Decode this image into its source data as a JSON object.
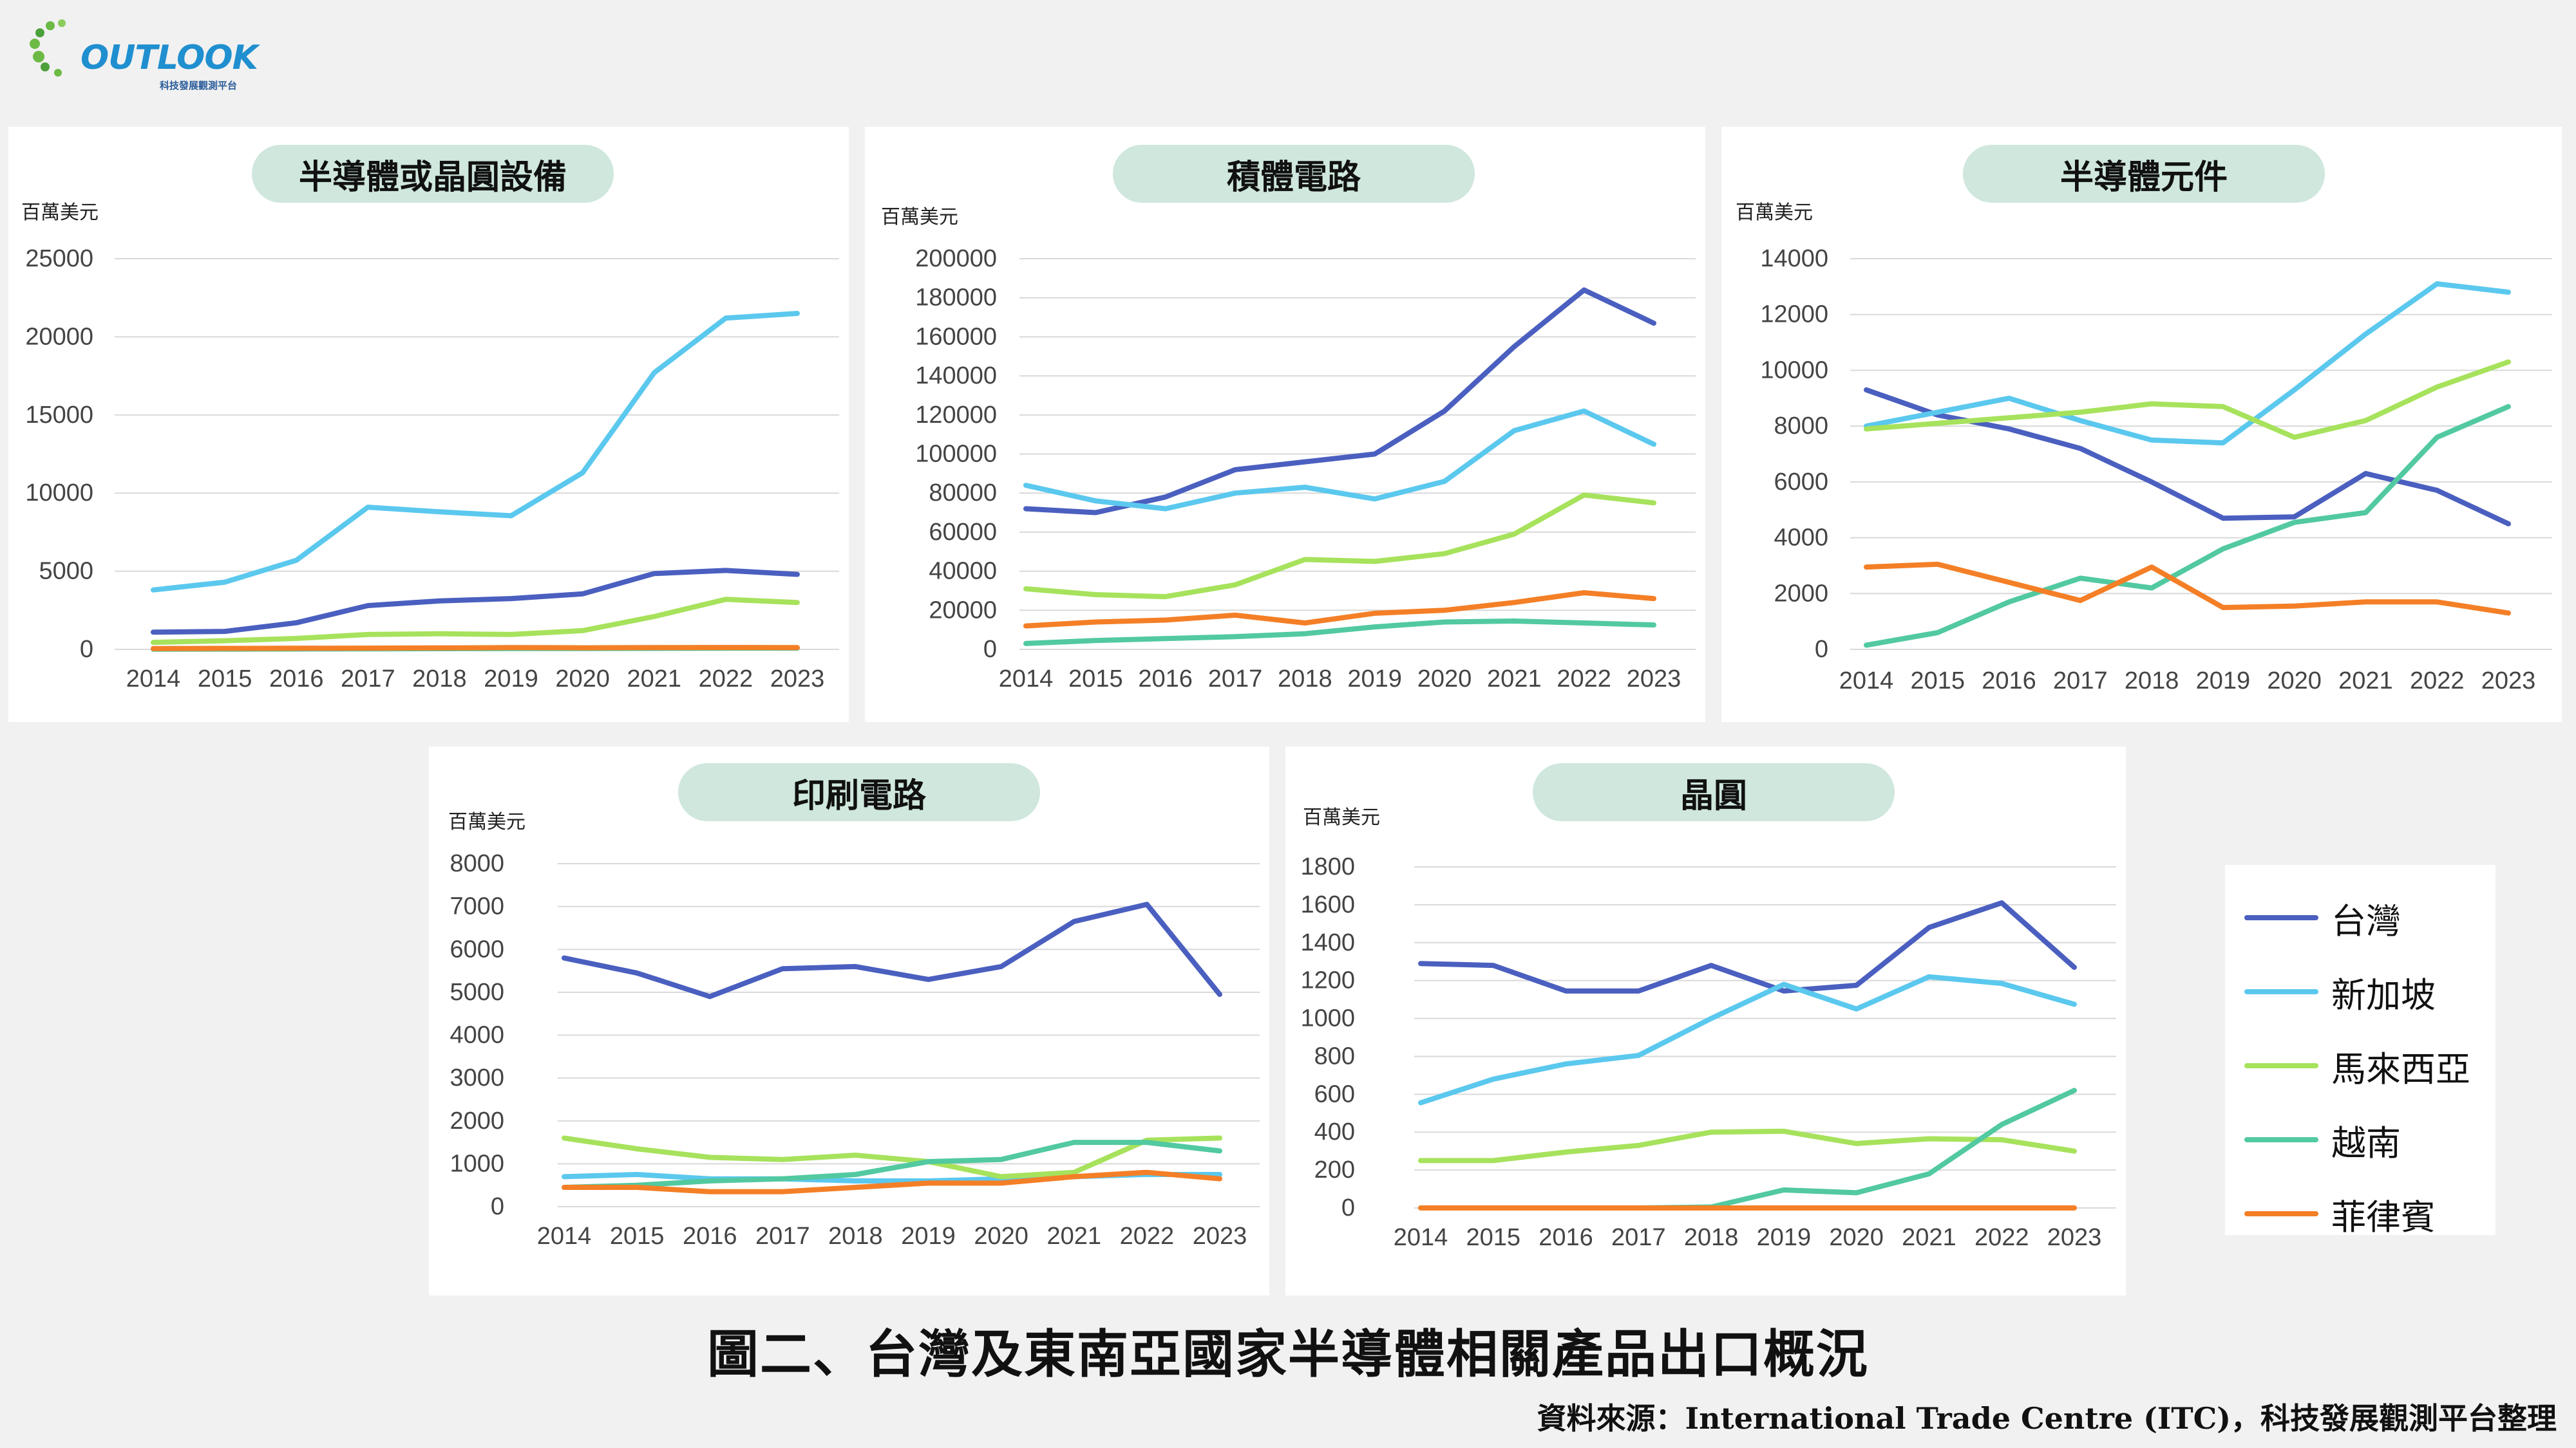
{
  "logo": {
    "text": "OUTLOOK",
    "subtitle": "科技發展觀測平台"
  },
  "figure_title": "圖二、台灣及東南亞國家半導體相關產品出口概況",
  "source": "資料來源：International Trade Centre (ITC)，科技發展觀測平台整理",
  "legend": [
    {
      "name": "台灣",
      "color": "#4a5fbf"
    },
    {
      "name": "新加坡",
      "color": "#5bc8ee"
    },
    {
      "name": "馬來西亞",
      "color": "#a7e25c"
    },
    {
      "name": "越南",
      "color": "#52c9a0"
    },
    {
      "name": "菲律賓",
      "color": "#f47f26"
    }
  ],
  "chart_data": [
    {
      "type": "line",
      "title": "半導體或晶圓設備",
      "ylabel": "百萬美元",
      "ylim": [
        0,
        25000
      ],
      "yticks": [
        0,
        5000,
        10000,
        15000,
        20000,
        25000
      ],
      "x": [
        "2014",
        "2015",
        "2016",
        "2017",
        "2018",
        "2019",
        "2020",
        "2021",
        "2022",
        "2023"
      ],
      "series": [
        {
          "name": "台灣",
          "values": [
            1100,
            1150,
            1700,
            2800,
            3100,
            3250,
            3550,
            4850,
            5050,
            4800
          ]
        },
        {
          "name": "新加坡",
          "values": [
            3800,
            4300,
            5700,
            9100,
            8800,
            8550,
            11300,
            17700,
            21200,
            21500
          ]
        },
        {
          "name": "馬來西亞",
          "values": [
            450,
            550,
            700,
            950,
            1000,
            950,
            1200,
            2100,
            3200,
            3000
          ]
        },
        {
          "name": "越南",
          "values": [
            10,
            15,
            20,
            30,
            40,
            50,
            50,
            60,
            70,
            80
          ]
        },
        {
          "name": "菲律賓",
          "values": [
            50,
            60,
            70,
            80,
            90,
            110,
            100,
            110,
            120,
            110
          ]
        }
      ]
    },
    {
      "type": "line",
      "title": "積體電路",
      "ylabel": "百萬美元",
      "ylim": [
        0,
        200000
      ],
      "yticks": [
        0,
        20000,
        40000,
        60000,
        80000,
        100000,
        120000,
        140000,
        160000,
        180000,
        200000
      ],
      "x": [
        "2014",
        "2015",
        "2016",
        "2017",
        "2018",
        "2019",
        "2020",
        "2021",
        "2022",
        "2023"
      ],
      "series": [
        {
          "name": "台灣",
          "values": [
            72000,
            70000,
            78000,
            92000,
            96000,
            100000,
            122000,
            155000,
            184000,
            167000
          ]
        },
        {
          "name": "新加坡",
          "values": [
            84000,
            76000,
            72000,
            80000,
            83000,
            77000,
            86000,
            112000,
            122000,
            105000
          ]
        },
        {
          "name": "馬來西亞",
          "values": [
            31000,
            28000,
            27000,
            33000,
            46000,
            45000,
            49000,
            59000,
            79000,
            75000
          ]
        },
        {
          "name": "越南",
          "values": [
            3000,
            4500,
            5500,
            6500,
            8000,
            11500,
            14000,
            14500,
            13500,
            12500
          ]
        },
        {
          "name": "菲律賓",
          "values": [
            12000,
            14000,
            15000,
            17500,
            13500,
            18500,
            20000,
            24000,
            29000,
            26000
          ]
        }
      ]
    },
    {
      "type": "line",
      "title": "半導體元件",
      "ylabel": "百萬美元",
      "ylim": [
        0,
        14000
      ],
      "yticks": [
        0,
        2000,
        4000,
        6000,
        8000,
        10000,
        12000,
        14000
      ],
      "x": [
        "2014",
        "2015",
        "2016",
        "2017",
        "2018",
        "2019",
        "2020",
        "2021",
        "2022",
        "2023"
      ],
      "series": [
        {
          "name": "台灣",
          "values": [
            9300,
            8400,
            7900,
            7200,
            6000,
            4700,
            4750,
            6300,
            5700,
            4500
          ]
        },
        {
          "name": "新加坡",
          "values": [
            8000,
            8500,
            9000,
            8200,
            7500,
            7400,
            9300,
            11300,
            13100,
            12800
          ]
        },
        {
          "name": "馬來西亞",
          "values": [
            7900,
            8100,
            8300,
            8500,
            8800,
            8700,
            7600,
            8200,
            9400,
            10300
          ]
        },
        {
          "name": "越南",
          "values": [
            150,
            600,
            1700,
            2550,
            2200,
            3600,
            4550,
            4900,
            7600,
            8700
          ]
        },
        {
          "name": "菲律賓",
          "values": [
            2950,
            3050,
            2400,
            1750,
            2950,
            1500,
            1550,
            1700,
            1700,
            1300
          ]
        }
      ]
    },
    {
      "type": "line",
      "title": "印刷電路",
      "ylabel": "百萬美元",
      "ylim": [
        0,
        8000
      ],
      "yticks": [
        0,
        1000,
        2000,
        3000,
        4000,
        5000,
        6000,
        7000,
        8000
      ],
      "x": [
        "2014",
        "2015",
        "2016",
        "2017",
        "2018",
        "2019",
        "2020",
        "2021",
        "2022",
        "2023"
      ],
      "series": [
        {
          "name": "台灣",
          "values": [
            5800,
            5450,
            4900,
            5550,
            5600,
            5300,
            5600,
            6650,
            7050,
            4950
          ]
        },
        {
          "name": "新加坡",
          "values": [
            700,
            750,
            650,
            650,
            600,
            600,
            650,
            700,
            750,
            750
          ]
        },
        {
          "name": "馬來西亞",
          "values": [
            1600,
            1350,
            1150,
            1100,
            1200,
            1050,
            700,
            800,
            1550,
            1600
          ]
        },
        {
          "name": "越南",
          "values": [
            450,
            500,
            600,
            650,
            750,
            1050,
            1100,
            1500,
            1500,
            1300
          ]
        },
        {
          "name": "菲律賓",
          "values": [
            450,
            450,
            350,
            350,
            450,
            550,
            550,
            700,
            800,
            650
          ]
        }
      ]
    },
    {
      "type": "line",
      "title": "晶圓",
      "ylabel": "百萬美元",
      "ylim": [
        0,
        1800
      ],
      "yticks": [
        0,
        200,
        400,
        600,
        800,
        1000,
        1200,
        1400,
        1600,
        1800
      ],
      "x": [
        "2014",
        "2015",
        "2016",
        "2017",
        "2018",
        "2019",
        "2020",
        "2021",
        "2022",
        "2023"
      ],
      "series": [
        {
          "name": "台灣",
          "values": [
            1290,
            1280,
            1145,
            1145,
            1280,
            1145,
            1175,
            1480,
            1610,
            1270
          ]
        },
        {
          "name": "新加坡",
          "values": [
            555,
            680,
            760,
            805,
            1000,
            1180,
            1050,
            1220,
            1185,
            1075
          ]
        },
        {
          "name": "馬來西亞",
          "values": [
            250,
            250,
            295,
            330,
            400,
            405,
            340,
            365,
            360,
            300
          ]
        },
        {
          "name": "越南",
          "values": [
            0,
            0,
            0,
            0,
            5,
            95,
            80,
            180,
            440,
            620
          ]
        },
        {
          "name": "菲律賓",
          "values": [
            0,
            0,
            0,
            0,
            0,
            0,
            0,
            0,
            0,
            0
          ]
        }
      ]
    }
  ]
}
